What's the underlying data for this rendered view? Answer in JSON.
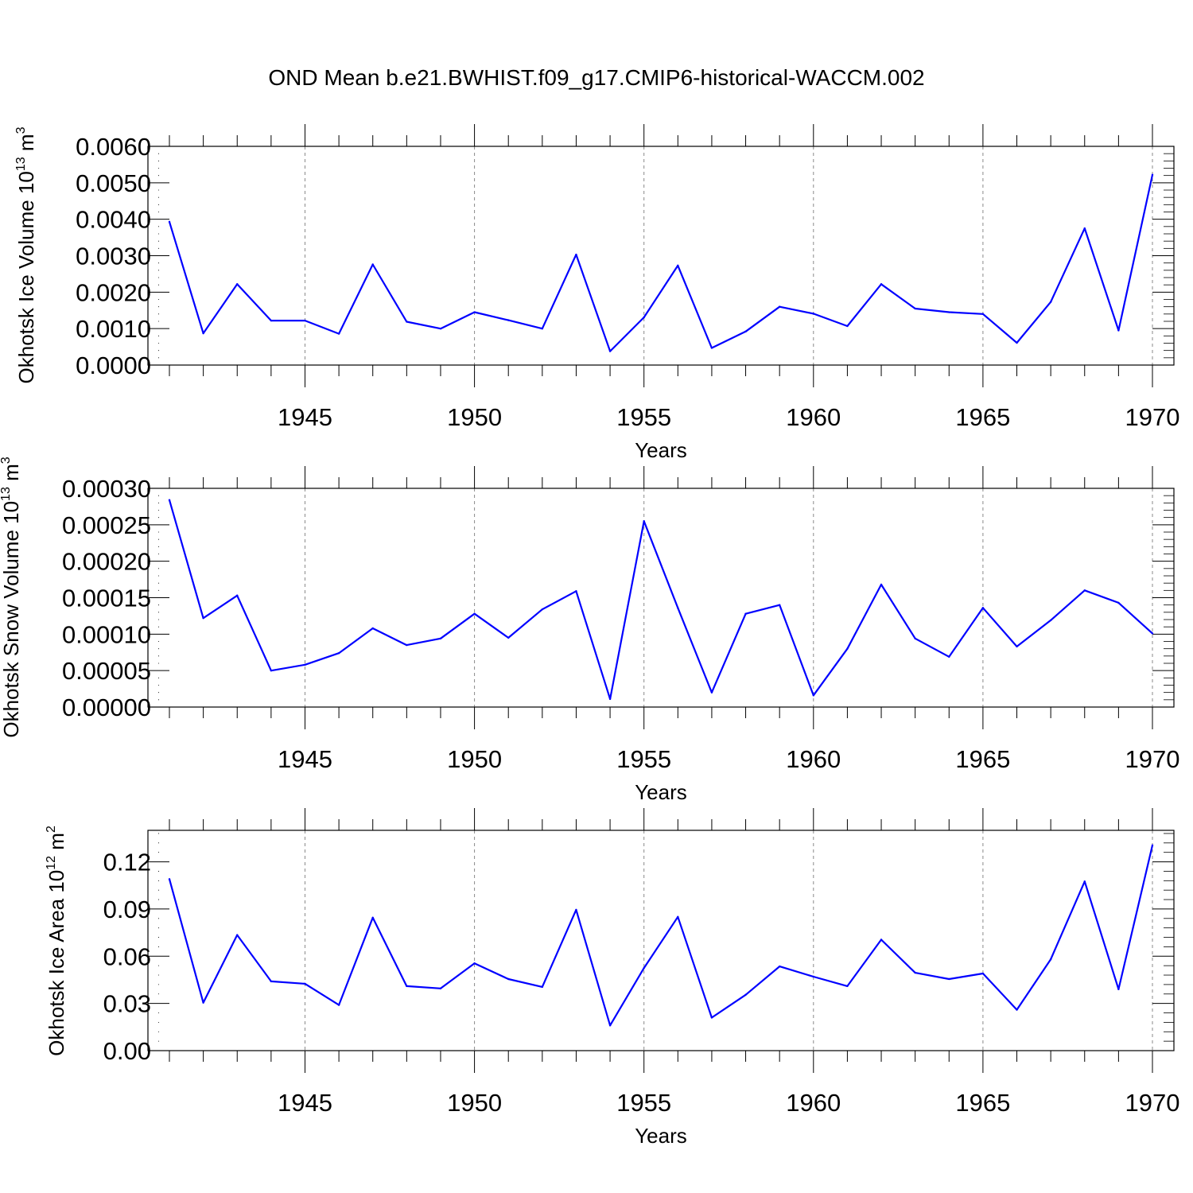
{
  "chart_data": [
    {
      "type": "line",
      "title": "OND Mean b.e21.BWHIST.f09_g17.CMIP6-historical-WACCM.002",
      "xlabel": "Years",
      "ylabel": "Okhotsk Ice Volume 10",
      "ylabel_exp": "13",
      "ylabel_unit": " m",
      "ylabel_unit_exp": "3",
      "xlim": [
        1941,
        1970
      ],
      "ylim": [
        0,
        0.006
      ],
      "x_ticks": [
        1945,
        1950,
        1955,
        1960,
        1965,
        1970
      ],
      "x_tick_labels": [
        "1945",
        "1950",
        "1955",
        "1960",
        "1965",
        "1970"
      ],
      "y_ticks": [
        0,
        0.001,
        0.002,
        0.003,
        0.004,
        0.005,
        0.006
      ],
      "y_tick_labels": [
        "0.0000",
        "0.0010",
        "0.0020",
        "0.0030",
        "0.0040",
        "0.0050",
        "0.0060"
      ],
      "grid": "vertical dashed at major x ticks",
      "color": "#0000ff",
      "x": [
        1941,
        1942,
        1943,
        1944,
        1945,
        1946,
        1947,
        1948,
        1949,
        1950,
        1951,
        1952,
        1953,
        1954,
        1955,
        1956,
        1957,
        1958,
        1959,
        1960,
        1961,
        1962,
        1963,
        1964,
        1965,
        1966,
        1967,
        1968,
        1969,
        1970
      ],
      "values": [
        0.00393,
        0.00087,
        0.00222,
        0.00122,
        0.00122,
        0.00086,
        0.00276,
        0.00119,
        0.001,
        0.00145,
        0.00123,
        0.001,
        0.00303,
        0.00038,
        0.00131,
        0.00273,
        0.00047,
        0.00092,
        0.0016,
        0.00141,
        0.00107,
        0.00222,
        0.00155,
        0.00145,
        0.0014,
        0.00061,
        0.00173,
        0.00375,
        0.00095,
        0.00522
      ]
    },
    {
      "type": "line",
      "xlabel": "Years",
      "ylabel": "Okhotsk Snow Volume 10",
      "ylabel_exp": "13",
      "ylabel_unit": " m",
      "ylabel_unit_exp": "3",
      "xlim": [
        1941,
        1970
      ],
      "ylim": [
        0,
        0.0003
      ],
      "x_ticks": [
        1945,
        1950,
        1955,
        1960,
        1965,
        1970
      ],
      "x_tick_labels": [
        "1945",
        "1950",
        "1955",
        "1960",
        "1965",
        "1970"
      ],
      "y_ticks": [
        0,
        5e-05,
        0.0001,
        0.00015,
        0.0002,
        0.00025,
        0.0003
      ],
      "y_tick_labels": [
        "0.00000",
        "0.00005",
        "0.00010",
        "0.00015",
        "0.00020",
        "0.00025",
        "0.00030"
      ],
      "grid": "vertical dashed at major x ticks",
      "color": "#0000ff",
      "x": [
        1941,
        1942,
        1943,
        1944,
        1945,
        1946,
        1947,
        1948,
        1949,
        1950,
        1951,
        1952,
        1953,
        1954,
        1955,
        1956,
        1957,
        1958,
        1959,
        1960,
        1961,
        1962,
        1963,
        1964,
        1965,
        1966,
        1967,
        1968,
        1969,
        1970
      ],
      "values": [
        0.000284,
        0.000122,
        0.000153,
        5e-05,
        5.8e-05,
        7.4e-05,
        0.000108,
        8.5e-05,
        9.4e-05,
        0.000128,
        9.5e-05,
        0.000134,
        0.000159,
        1.1e-05,
        0.000255,
        0.000136,
        2e-05,
        0.000128,
        0.00014,
        1.6e-05,
        8e-05,
        0.000168,
        9.4e-05,
        6.9e-05,
        0.000136,
        8.3e-05,
        0.000119,
        0.00016,
        0.000143,
        0.000101
      ]
    },
    {
      "type": "line",
      "xlabel": "Years",
      "ylabel": "Okhotsk Ice Area 10",
      "ylabel_exp": "12",
      "ylabel_unit": " m",
      "ylabel_unit_exp": "2",
      "xlim": [
        1941,
        1970
      ],
      "ylim": [
        0,
        0.14
      ],
      "x_ticks": [
        1945,
        1950,
        1955,
        1960,
        1965,
        1970
      ],
      "x_tick_labels": [
        "1945",
        "1950",
        "1955",
        "1960",
        "1965",
        "1970"
      ],
      "y_ticks": [
        0,
        0.03,
        0.06,
        0.09,
        0.12
      ],
      "y_tick_labels": [
        "0.00",
        "0.03",
        "0.06",
        "0.09",
        "0.12"
      ],
      "grid": "vertical dashed at major x ticks",
      "color": "#0000ff",
      "x": [
        1941,
        1942,
        1943,
        1944,
        1945,
        1946,
        1947,
        1948,
        1949,
        1950,
        1951,
        1952,
        1953,
        1954,
        1955,
        1956,
        1957,
        1958,
        1959,
        1960,
        1961,
        1962,
        1963,
        1964,
        1965,
        1966,
        1967,
        1968,
        1969,
        1970
      ],
      "values": [
        0.109,
        0.0305,
        0.0735,
        0.044,
        0.0425,
        0.029,
        0.0845,
        0.041,
        0.0395,
        0.0555,
        0.0455,
        0.0405,
        0.0895,
        0.016,
        0.0525,
        0.085,
        0.021,
        0.0355,
        0.0535,
        0.047,
        0.041,
        0.0705,
        0.0495,
        0.0455,
        0.049,
        0.026,
        0.058,
        0.1075,
        0.039,
        0.1305
      ]
    }
  ]
}
